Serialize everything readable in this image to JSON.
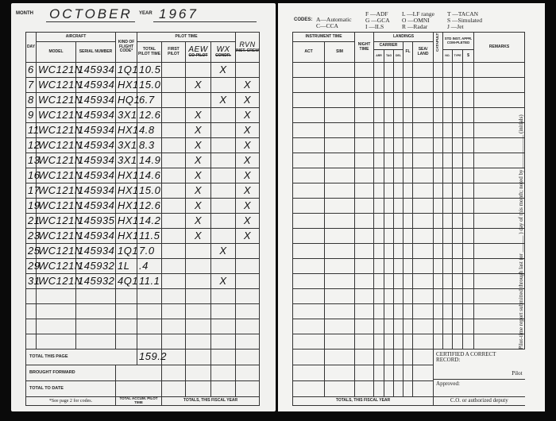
{
  "left": {
    "month_label": "MONTH",
    "month": "OCTOBER",
    "year_label": "YEAR",
    "year": "1967",
    "headers": {
      "day": "DAY",
      "aircraft": "AIRCRAFT",
      "model": "MODEL",
      "serial": "SERIAL NUMBER",
      "kind": "KIND OF FLIGHT CODE*",
      "pilot_time": "PILOT TIME",
      "total": "TOTAL PILOT TIME",
      "first_pilot": "FIRST PILOT",
      "col3_hand": "AEW",
      "col3_print": "CO-PILOT",
      "col4_hand": "WX",
      "col4_print": "CONDR.",
      "col5_hand": "RVN",
      "col5_print": "INST. CREW"
    },
    "rows": [
      {
        "day": "6",
        "model": "WC121N",
        "serial": "145934",
        "kind": "1Q1",
        "total": "10.5",
        "first": "",
        "aew": "",
        "wx": "X",
        "rvn": ""
      },
      {
        "day": "7",
        "model": "WC121N",
        "serial": "145934",
        "kind": "HX1",
        "total": "15.0",
        "first": "",
        "aew": "X",
        "wx": "",
        "rvn": "X"
      },
      {
        "day": "8",
        "model": "WC121N",
        "serial": "145934",
        "kind": "HQ1",
        "total": "6.7",
        "first": "",
        "aew": "",
        "wx": "X",
        "rvn": "X"
      },
      {
        "day": "9",
        "model": "WC121N",
        "serial": "145934",
        "kind": "3X1",
        "total": "12.6",
        "first": "",
        "aew": "X",
        "wx": "",
        "rvn": "X"
      },
      {
        "day": "11",
        "model": "WC121N",
        "serial": "145934",
        "kind": "HX1",
        "total": "4.8",
        "first": "",
        "aew": "X",
        "wx": "",
        "rvn": "X"
      },
      {
        "day": "12",
        "model": "WC121N",
        "serial": "145934",
        "kind": "3X1",
        "total": "8.3",
        "first": "",
        "aew": "X",
        "wx": "",
        "rvn": "X"
      },
      {
        "day": "13",
        "model": "WC121N",
        "serial": "145934",
        "kind": "3X1",
        "total": "14.9",
        "first": "",
        "aew": "X",
        "wx": "",
        "rvn": "X"
      },
      {
        "day": "16",
        "model": "WC121N",
        "serial": "145934",
        "kind": "HX1",
        "total": "14.6",
        "first": "",
        "aew": "X",
        "wx": "",
        "rvn": "X"
      },
      {
        "day": "17",
        "model": "WC121N",
        "serial": "145934",
        "kind": "HX1",
        "total": "15.0",
        "first": "",
        "aew": "X",
        "wx": "",
        "rvn": "X"
      },
      {
        "day": "19",
        "model": "WC121N",
        "serial": "145934",
        "kind": "HX1",
        "total": "12.6",
        "first": "",
        "aew": "X",
        "wx": "",
        "rvn": "X"
      },
      {
        "day": "21",
        "model": "WC121N",
        "serial": "145935",
        "kind": "HX1",
        "total": "14.2",
        "first": "",
        "aew": "X",
        "wx": "",
        "rvn": "X"
      },
      {
        "day": "23",
        "model": "WC121N",
        "serial": "145934",
        "kind": "HX1",
        "total": "11.5",
        "first": "",
        "aew": "X",
        "wx": "",
        "rvn": "X"
      },
      {
        "day": "25",
        "model": "WC121N",
        "serial": "145934",
        "kind": "1Q1",
        "total": "7.0",
        "first": "",
        "aew": "",
        "wx": "X",
        "rvn": ""
      },
      {
        "day": "29",
        "model": "WC121N",
        "serial": "145932",
        "kind": "1L",
        "total": ".4",
        "first": "",
        "aew": "",
        "wx": "",
        "rvn": ""
      },
      {
        "day": "31",
        "model": "WC121N",
        "serial": "145932",
        "kind": "4Q1",
        "total": "11.1",
        "first": "",
        "aew": "",
        "wx": "X",
        "rvn": ""
      }
    ],
    "total_this_page_label": "TOTAL THIS PAGE",
    "total_this_page": "159.2",
    "brought_forward_label": "BROUGHT FORWARD",
    "total_to_date_label": "TOTAL TO DATE",
    "footnote": "*See page 2 for codes.",
    "accum_label": "TOTAL ACCUM. PILOT TIME",
    "fiscal_label": "TOTALS, THIS FISCAL YEAR"
  },
  "right": {
    "codes_label": "CODES:",
    "codes": [
      "A—Automatic",
      "C—CCA",
      "F —ADF",
      "G —GCA",
      "I —ILS",
      "L —LF range",
      "O —OMNI",
      "R —Radar",
      "T —TACAN",
      "S —Simulated",
      "J —Jet"
    ],
    "headers": {
      "instrument": "INSTRUMENT TIME",
      "act": "ACT",
      "sim": "SIM",
      "night": "NIGHT TIME",
      "landings": "LANDINGS",
      "carrier": "CARRIER",
      "arr": "ARR",
      "tag": "TAG",
      "del": "DEL",
      "fl": "FL",
      "sea": "SEA/ LAND",
      "catapult": "CATAPULT",
      "std": "STD INST. APPR. COM-PLETED",
      "no": "NO.",
      "type": "TYPE",
      "s": "$",
      "remarks": "REMARKS"
    },
    "certified": "CERTIFIED A CORRECT RECORD:",
    "pilot": "Pilot",
    "approved": "Approved:",
    "co": "C.O. or authorized deputy",
    "fiscal_label": "TOTALS, THIS FISCAL YEAR",
    "vertical_note": "Pilot-time report submitted through last (or ______ ) day of this month; noted by ____________ (initials)"
  }
}
